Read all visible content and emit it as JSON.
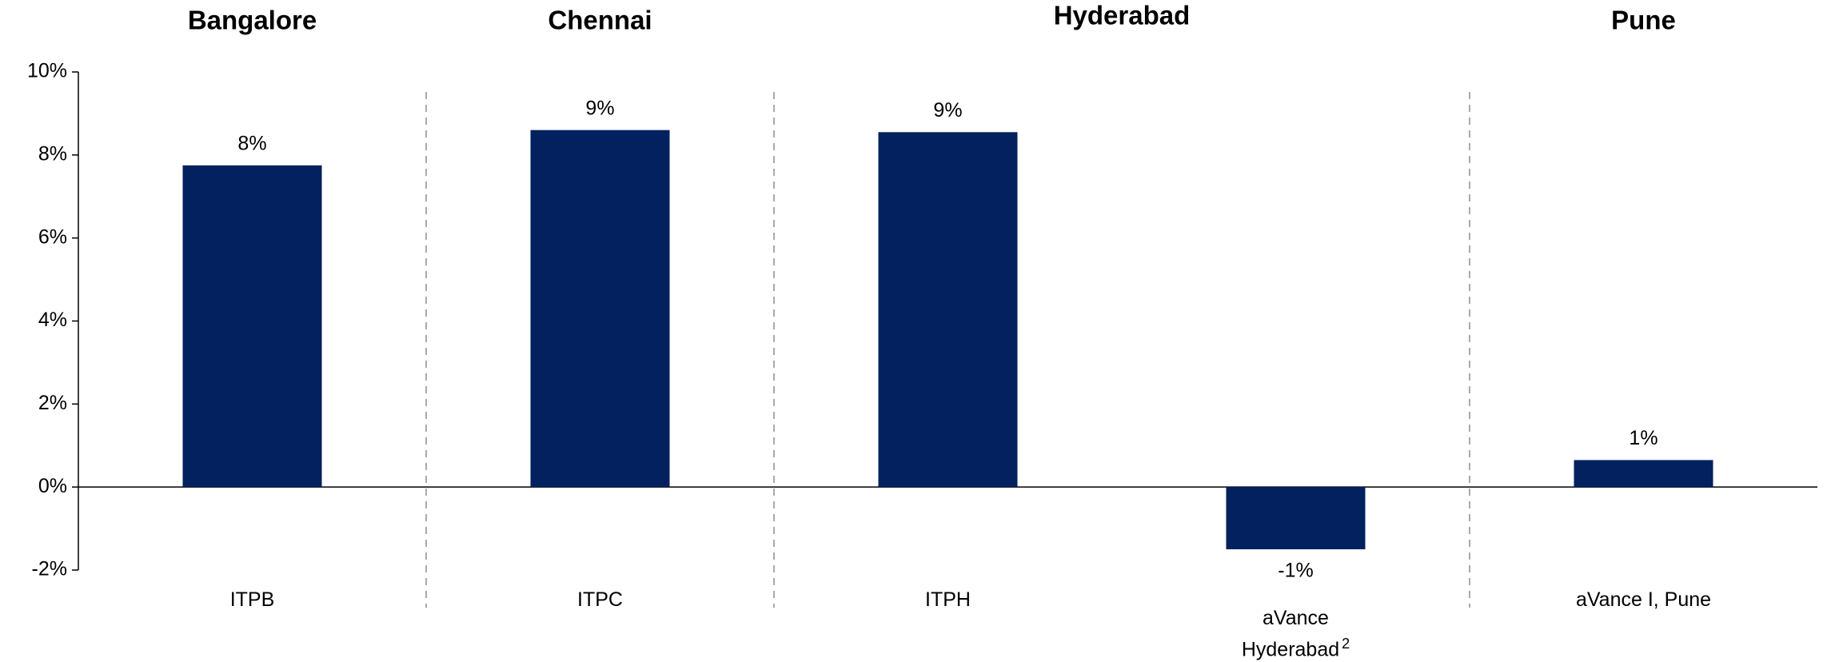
{
  "chart_data": {
    "type": "bar",
    "groups": [
      "Bangalore",
      "Chennai",
      "Hyderabad",
      "Pune"
    ],
    "group_sizes": [
      1,
      1,
      2,
      1
    ],
    "categories": [
      "ITPB",
      "ITPC",
      "ITPH",
      "aVance\nHyderabad",
      "aVance I, Pune"
    ],
    "category_superscripts": [
      null,
      null,
      null,
      "2",
      null
    ],
    "values": [
      7.75,
      8.6,
      8.55,
      -1.5,
      0.65
    ],
    "value_labels": [
      "8%",
      "9%",
      "9%",
      "-1%",
      "1%"
    ],
    "color": "#03215e",
    "ylim": [
      -2,
      10
    ],
    "yticks": [
      {
        "value": -2,
        "label": "-2%"
      },
      {
        "value": 0,
        "label": "0%"
      },
      {
        "value": 2,
        "label": "2%"
      },
      {
        "value": 4,
        "label": "4%"
      },
      {
        "value": 6,
        "label": "6%"
      },
      {
        "value": 8,
        "label": "8%"
      },
      {
        "value": 10,
        "label": "10%"
      }
    ],
    "grid": false
  }
}
